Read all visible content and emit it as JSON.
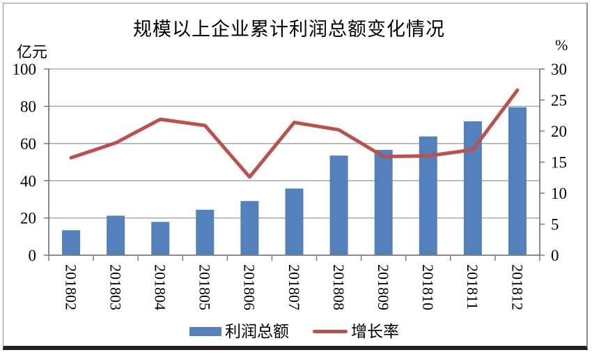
{
  "chart_data": {
    "type": "bar+line",
    "title": "规模以上企业累计利润总额变化情况",
    "categories": [
      "201802",
      "201803",
      "201804",
      "201805",
      "201806",
      "201807",
      "201808",
      "201809",
      "201810",
      "201811",
      "201812"
    ],
    "series": [
      {
        "name": "利润总额",
        "type": "bar",
        "axis": "left",
        "color": "#5480BC",
        "values": [
          13.4,
          21.2,
          17.9,
          24.4,
          29.1,
          35.8,
          53.5,
          56.6,
          63.8,
          71.9,
          79.5
        ]
      },
      {
        "name": "增长率",
        "type": "line",
        "axis": "right",
        "color": "#BB504C",
        "values": [
          15.7,
          18.1,
          21.9,
          20.9,
          12.6,
          21.4,
          20.2,
          15.9,
          16.0,
          17.0,
          26.6
        ]
      }
    ],
    "left_axis": {
      "label": "亿元",
      "min": 0,
      "max": 100,
      "ticks": [
        0,
        20,
        40,
        60,
        80,
        100
      ]
    },
    "right_axis": {
      "label": "%",
      "min": 0,
      "max": 30,
      "ticks": [
        0,
        5,
        10,
        15,
        20,
        25,
        30
      ]
    },
    "grid": true,
    "legend_position": "bottom",
    "colors": {
      "grid": "#9e9e9e",
      "axis": "#7c7c7c",
      "bar": "#5480BC",
      "line": "#BB504C"
    }
  }
}
